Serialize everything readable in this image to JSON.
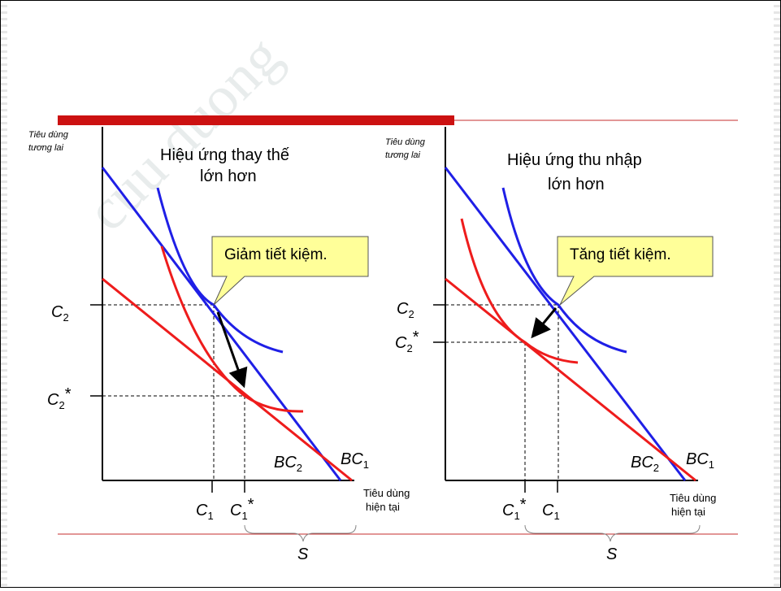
{
  "watermark": "cuu duong",
  "left_panel": {
    "y_axis_label_line1": "Tiêu dùng",
    "y_axis_label_line2": "tương lai",
    "title_line1": "Hiệu ứng thay thế",
    "title_line2": "lớn hơn",
    "callout": "Giảm tiết kiệm.",
    "c2_label": "C",
    "c2_sub": "2",
    "c2star_label": "C",
    "c2star_sub": "2",
    "c2star_mark": "*",
    "c1_label": "C",
    "c1_sub": "1",
    "c1star_label": "C",
    "c1star_sub": "1",
    "c1star_mark": "*",
    "bc2_label": "BC",
    "bc2_sub": "2",
    "bc1_label": "BC",
    "bc1_sub": "1",
    "x_axis_label_line1": "Tiêu dùng",
    "x_axis_label_line2": "hiện tại",
    "s_label": "S"
  },
  "right_panel": {
    "y_axis_label_line1": "Tiêu dùng",
    "y_axis_label_line2": "tương lai",
    "title_line1": "Hiệu ứng thu nhập",
    "title_line2": "lớn hơn",
    "callout": "Tăng tiết kiệm.",
    "c2_label": "C",
    "c2_sub": "2",
    "c2star_label": "C",
    "c2star_sub": "2",
    "c2star_mark": "*",
    "c1star_label": "C",
    "c1star_sub": "1",
    "c1star_mark": "*",
    "c1_label": "C",
    "c1_sub": "1",
    "bc2_label": "BC",
    "bc2_sub": "2",
    "bc1_label": "BC",
    "bc1_sub": "1",
    "x_axis_label_line1": "Tiêu dùng",
    "x_axis_label_line2": "hiện tại",
    "s_label": "S"
  },
  "colors": {
    "budget_old": "#1f1fe6",
    "budget_new": "#ee1c1c",
    "accent_bar": "#cc1111",
    "callout_fill": "#ffff99"
  }
}
